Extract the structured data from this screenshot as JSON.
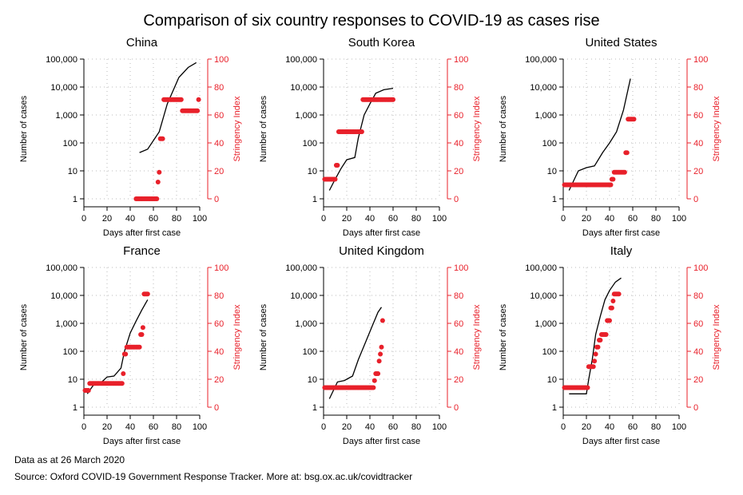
{
  "title": "Comparison of six country responses to COVID-19 as cases rise",
  "notes": {
    "data_date": "Data as at 26 March 2020",
    "source": "Source: Oxford COVID-19 Government Response Tracker. More at: bsg.ox.ac.uk/covidtracker"
  },
  "colors": {
    "cases_line": "#000000",
    "stringency_points": "#e8202a",
    "grid": "#bbbbbb"
  },
  "chart_data": [
    {
      "type": "line",
      "title": "China",
      "xlabel": "Days after first case",
      "ylabel": "Number of cases",
      "y2label": "Stringency Index",
      "xlim": [
        0,
        100
      ],
      "ylim": [
        1,
        100000
      ],
      "y2lim": [
        0,
        100
      ],
      "yscale": "log",
      "xticks": [
        "0",
        "20",
        "40",
        "60",
        "80",
        "100"
      ],
      "yticks": [
        "1",
        "10",
        "100",
        "1,000",
        "10,000",
        "100,000"
      ],
      "y2ticks": [
        "0",
        "20",
        "40",
        "60",
        "80",
        "100"
      ],
      "grid": true,
      "series": [
        {
          "type": "line",
          "x": [
            48,
            55,
            65,
            72,
            82,
            90,
            97
          ],
          "y": [
            45,
            60,
            250,
            2500,
            22000,
            50000,
            75000
          ]
        },
        {
          "type": "scatter",
          "x": [
            45,
            46,
            47,
            48,
            49,
            50,
            51,
            52,
            53,
            54,
            55,
            56,
            57,
            58,
            59,
            60,
            61,
            62,
            63,
            64,
            65,
            66,
            67,
            68,
            69,
            70,
            71,
            72,
            73,
            74,
            75,
            76,
            77,
            78,
            79,
            80,
            81,
            82,
            83,
            84,
            85,
            86,
            87,
            88,
            89,
            90,
            91,
            92,
            93,
            94,
            95,
            96,
            97,
            98,
            99
          ],
          "y": [
            0,
            0,
            0,
            0,
            0,
            0,
            0,
            0,
            0,
            0,
            0,
            0,
            0,
            0,
            0,
            0,
            0,
            0,
            0,
            12,
            19,
            43,
            43,
            43,
            71,
            71,
            71,
            71,
            71,
            71,
            71,
            71,
            71,
            71,
            71,
            71,
            71,
            71,
            71,
            71,
            63,
            63,
            63,
            63,
            63,
            63,
            63,
            63,
            63,
            63,
            63,
            63,
            63,
            63,
            71
          ]
        }
      ]
    },
    {
      "type": "line",
      "title": "South Korea",
      "xlabel": "Days after first case",
      "ylabel": "Number of cases",
      "y2label": "Stringency Index",
      "xlim": [
        0,
        100
      ],
      "ylim": [
        1,
        100000
      ],
      "y2lim": [
        0,
        100
      ],
      "yscale": "log",
      "xticks": [
        "0",
        "20",
        "40",
        "60",
        "80",
        "100"
      ],
      "yticks": [
        "1",
        "10",
        "100",
        "1,000",
        "10,000",
        "100,000"
      ],
      "y2ticks": [
        "0",
        "20",
        "40",
        "60",
        "80",
        "100"
      ],
      "grid": true,
      "series": [
        {
          "type": "line",
          "x": [
            5,
            10,
            15,
            20,
            27,
            30,
            35,
            40,
            45,
            52,
            60
          ],
          "y": [
            2,
            5,
            12,
            25,
            30,
            150,
            1000,
            2500,
            6000,
            8000,
            9000
          ]
        },
        {
          "type": "scatter",
          "x": [
            1,
            2,
            3,
            4,
            5,
            6,
            7,
            8,
            9,
            10,
            11,
            12,
            13,
            14,
            15,
            16,
            17,
            18,
            19,
            20,
            21,
            22,
            23,
            24,
            25,
            26,
            27,
            28,
            29,
            30,
            31,
            32,
            33,
            34,
            35,
            36,
            37,
            38,
            39,
            40,
            41,
            42,
            43,
            44,
            45,
            46,
            47,
            48,
            49,
            50,
            51,
            52,
            53,
            54,
            55,
            56,
            57,
            58,
            59,
            60
          ],
          "y": [
            14,
            14,
            14,
            14,
            14,
            14,
            14,
            14,
            14,
            14,
            24,
            24,
            48,
            48,
            48,
            48,
            48,
            48,
            48,
            48,
            48,
            48,
            48,
            48,
            48,
            48,
            48,
            48,
            48,
            48,
            48,
            48,
            48,
            71,
            71,
            71,
            71,
            71,
            71,
            71,
            71,
            71,
            71,
            71,
            71,
            71,
            71,
            71,
            71,
            71,
            71,
            71,
            71,
            71,
            71,
            71,
            71,
            71,
            71,
            71
          ]
        }
      ]
    },
    {
      "type": "line",
      "title": "United States",
      "xlabel": "Days after first case",
      "ylabel": "Number of cases",
      "y2label": "Stringency Index",
      "xlim": [
        0,
        100
      ],
      "ylim": [
        1,
        100000
      ],
      "y2lim": [
        0,
        100
      ],
      "yscale": "log",
      "xticks": [
        "0",
        "20",
        "40",
        "60",
        "80",
        "100"
      ],
      "yticks": [
        "1",
        "10",
        "100",
        "1,000",
        "10,000",
        "100,000"
      ],
      "y2ticks": [
        "0",
        "20",
        "40",
        "60",
        "80",
        "100"
      ],
      "grid": true,
      "series": [
        {
          "type": "line",
          "x": [
            5,
            13,
            20,
            27,
            34,
            40,
            46,
            52,
            58
          ],
          "y": [
            2,
            10,
            13,
            15,
            45,
            100,
            250,
            1500,
            20000
          ]
        },
        {
          "type": "scatter",
          "x": [
            1,
            2,
            3,
            4,
            5,
            6,
            7,
            8,
            9,
            10,
            11,
            12,
            13,
            14,
            15,
            16,
            17,
            18,
            19,
            20,
            21,
            22,
            23,
            24,
            25,
            26,
            27,
            28,
            29,
            30,
            31,
            32,
            33,
            34,
            35,
            36,
            37,
            38,
            39,
            40,
            41,
            42,
            43,
            44,
            45,
            46,
            47,
            48,
            49,
            50,
            51,
            52,
            53,
            54,
            55,
            56,
            57,
            58,
            59,
            60,
            61
          ],
          "y": [
            10,
            10,
            10,
            10,
            10,
            10,
            10,
            10,
            10,
            10,
            10,
            10,
            10,
            10,
            10,
            10,
            10,
            10,
            10,
            10,
            10,
            10,
            10,
            10,
            10,
            10,
            10,
            10,
            10,
            10,
            10,
            10,
            10,
            10,
            10,
            10,
            10,
            10,
            10,
            10,
            10,
            14,
            14,
            19,
            19,
            19,
            19,
            19,
            19,
            19,
            19,
            19,
            19,
            33,
            33,
            57,
            57,
            57,
            57,
            57,
            57
          ]
        }
      ]
    },
    {
      "type": "line",
      "title": "France",
      "xlabel": "Days after first case",
      "ylabel": "Number of cases",
      "y2label": "Stringency Index",
      "xlim": [
        0,
        100
      ],
      "ylim": [
        1,
        100000
      ],
      "y2lim": [
        0,
        100
      ],
      "yscale": "log",
      "xticks": [
        "0",
        "20",
        "40",
        "60",
        "80",
        "100"
      ],
      "yticks": [
        "1",
        "10",
        "100",
        "1,000",
        "10,000",
        "100,000"
      ],
      "y2ticks": [
        "0",
        "20",
        "40",
        "60",
        "80",
        "100"
      ],
      "grid": true,
      "series": [
        {
          "type": "line",
          "x": [
            3,
            8,
            14,
            20,
            26,
            32,
            35,
            40,
            45,
            50,
            55
          ],
          "y": [
            3,
            6,
            7,
            12,
            13,
            25,
            100,
            450,
            1200,
            3000,
            7000
          ]
        },
        {
          "type": "scatter",
          "x": [
            1,
            2,
            3,
            4,
            5,
            6,
            7,
            8,
            9,
            10,
            11,
            12,
            13,
            14,
            15,
            16,
            17,
            18,
            19,
            20,
            21,
            22,
            23,
            24,
            25,
            26,
            27,
            28,
            29,
            30,
            31,
            32,
            33,
            34,
            35,
            36,
            37,
            38,
            39,
            40,
            41,
            42,
            43,
            44,
            45,
            46,
            47,
            48,
            49,
            50,
            51,
            52,
            53,
            54,
            55
          ],
          "y": [
            12,
            12,
            12,
            12,
            17,
            17,
            17,
            17,
            17,
            17,
            17,
            17,
            17,
            17,
            17,
            17,
            17,
            17,
            17,
            17,
            17,
            17,
            17,
            17,
            17,
            17,
            17,
            17,
            17,
            17,
            17,
            17,
            17,
            24,
            38,
            38,
            43,
            43,
            43,
            43,
            43,
            43,
            43,
            43,
            43,
            43,
            43,
            43,
            52,
            52,
            57,
            81,
            81,
            81,
            81
          ]
        }
      ]
    },
    {
      "type": "line",
      "title": "United Kingdom",
      "xlabel": "Days after first case",
      "ylabel": "Number of cases",
      "y2label": "Stringency Index",
      "xlim": [
        0,
        100
      ],
      "ylim": [
        1,
        100000
      ],
      "y2lim": [
        0,
        100
      ],
      "yscale": "log",
      "xticks": [
        "0",
        "20",
        "40",
        "60",
        "80",
        "100"
      ],
      "yticks": [
        "1",
        "10",
        "100",
        "1,000",
        "10,000",
        "100,000"
      ],
      "y2ticks": [
        "0",
        "20",
        "40",
        "60",
        "80",
        "100"
      ],
      "grid": true,
      "series": [
        {
          "type": "line",
          "x": [
            5,
            12,
            18,
            25,
            30,
            36,
            42,
            47,
            50
          ],
          "y": [
            2,
            8,
            9,
            13,
            50,
            200,
            800,
            2500,
            3800
          ]
        },
        {
          "type": "scatter",
          "x": [
            1,
            2,
            3,
            4,
            5,
            6,
            7,
            8,
            9,
            10,
            11,
            12,
            13,
            14,
            15,
            16,
            17,
            18,
            19,
            20,
            21,
            22,
            23,
            24,
            25,
            26,
            27,
            28,
            29,
            30,
            31,
            32,
            33,
            34,
            35,
            36,
            37,
            38,
            39,
            40,
            41,
            42,
            43,
            44,
            45,
            46,
            47,
            48,
            49,
            50,
            51
          ],
          "y": [
            14,
            14,
            14,
            14,
            14,
            14,
            14,
            14,
            14,
            14,
            14,
            14,
            14,
            14,
            14,
            14,
            14,
            14,
            14,
            14,
            14,
            14,
            14,
            14,
            14,
            14,
            14,
            14,
            14,
            14,
            14,
            14,
            14,
            14,
            14,
            14,
            14,
            14,
            14,
            14,
            14,
            14,
            14,
            19,
            24,
            24,
            24,
            33,
            38,
            43,
            62
          ]
        }
      ]
    },
    {
      "type": "line",
      "title": "Italy",
      "xlabel": "Days after first case",
      "ylabel": "Number of cases",
      "y2label": "Stringency Index",
      "xlim": [
        0,
        100
      ],
      "ylim": [
        1,
        100000
      ],
      "y2lim": [
        0,
        100
      ],
      "yscale": "log",
      "xticks": [
        "0",
        "20",
        "40",
        "60",
        "80",
        "100"
      ],
      "yticks": [
        "1",
        "10",
        "100",
        "1,000",
        "10,000",
        "100,000"
      ],
      "y2ticks": [
        "0",
        "20",
        "40",
        "60",
        "80",
        "100"
      ],
      "grid": true,
      "series": [
        {
          "type": "line",
          "x": [
            5,
            10,
            15,
            20,
            22,
            25,
            28,
            32,
            36,
            40,
            45,
            50
          ],
          "y": [
            3,
            3,
            3,
            3,
            10,
            50,
            400,
            1800,
            7000,
            15000,
            30000,
            42000
          ]
        },
        {
          "type": "scatter",
          "x": [
            1,
            2,
            3,
            4,
            5,
            6,
            7,
            8,
            9,
            10,
            11,
            12,
            13,
            14,
            15,
            16,
            17,
            18,
            19,
            20,
            21,
            22,
            23,
            24,
            25,
            26,
            27,
            28,
            29,
            30,
            31,
            32,
            33,
            34,
            35,
            36,
            37,
            38,
            39,
            40,
            41,
            42,
            43,
            44,
            45,
            46,
            47,
            48
          ],
          "y": [
            14,
            14,
            14,
            14,
            14,
            14,
            14,
            14,
            14,
            14,
            14,
            14,
            14,
            14,
            14,
            14,
            14,
            14,
            14,
            14,
            14,
            29,
            29,
            29,
            29,
            29,
            33,
            38,
            43,
            43,
            48,
            48,
            52,
            52,
            52,
            52,
            52,
            62,
            62,
            62,
            71,
            71,
            76,
            81,
            81,
            81,
            81,
            81
          ]
        }
      ]
    }
  ]
}
